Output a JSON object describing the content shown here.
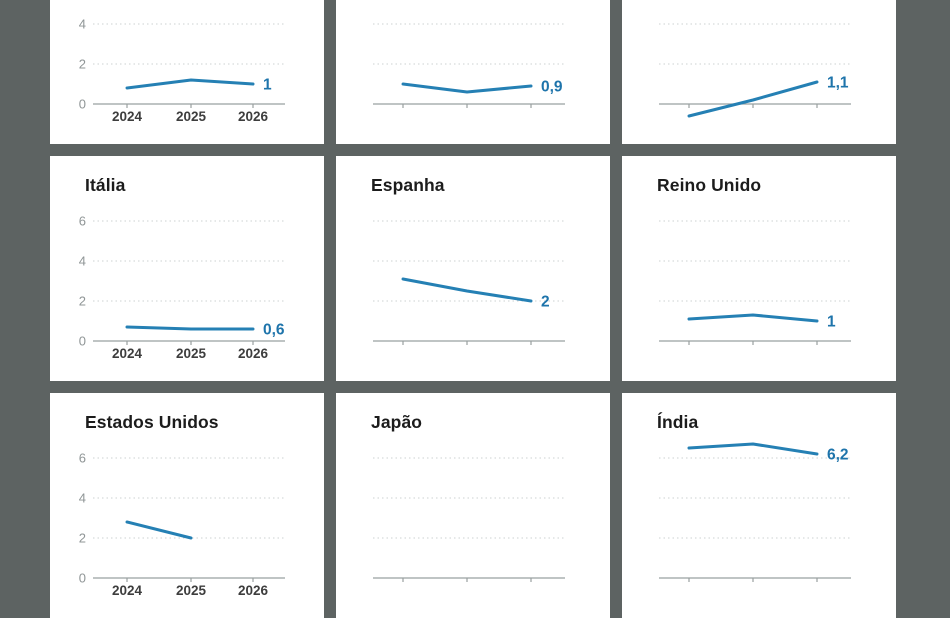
{
  "page": {
    "background": "#5d6362",
    "card_background": "#ffffff"
  },
  "colors": {
    "line": "#2580b4",
    "value_label": "#1e74ab",
    "title": "#1c1c1c",
    "axis": "#99a0a0",
    "grid": "#ccd2d2",
    "y_tick_label": "#8f9596",
    "x_tick_label": "#3d3d3d"
  },
  "chart_data": {
    "type": "line",
    "layout": "3x3-small-multiples",
    "x": [
      "2024",
      "2025",
      "2026"
    ],
    "y_ticks": [
      0,
      2,
      4,
      6
    ],
    "ylim": [
      -1,
      7
    ],
    "grid": "dotted horizontal gridlines at 2, 4, 6; solid baseline at 0",
    "legend": "none",
    "charts": [
      {
        "title": "",
        "values": [
          0.8,
          1.2,
          1.0
        ],
        "end_label": "1",
        "axis_labeled": true
      },
      {
        "title": "",
        "values": [
          1.0,
          0.6,
          0.9
        ],
        "end_label": "0,9",
        "axis_labeled": false
      },
      {
        "title": "",
        "values": [
          -0.6,
          0.2,
          1.1
        ],
        "end_label": "1,1",
        "axis_labeled": false
      },
      {
        "title": "Itália",
        "values": [
          0.7,
          0.6,
          0.6
        ],
        "end_label": "0,6",
        "axis_labeled": true
      },
      {
        "title": "Espanha",
        "values": [
          3.1,
          2.5,
          2.0
        ],
        "end_label": "2",
        "axis_labeled": false
      },
      {
        "title": "Reino Unido",
        "values": [
          1.1,
          1.3,
          1.0
        ],
        "end_label": "1",
        "axis_labeled": false
      },
      {
        "title": "Estados Unidos",
        "values": [
          2.8,
          2.0
        ],
        "end_label": null,
        "axis_labeled": true
      },
      {
        "title": "Japão",
        "values": [],
        "end_label": null,
        "axis_labeled": false
      },
      {
        "title": "Índia",
        "values": [
          6.5,
          6.7,
          6.2
        ],
        "end_label": "6,2",
        "axis_labeled": false
      }
    ]
  }
}
